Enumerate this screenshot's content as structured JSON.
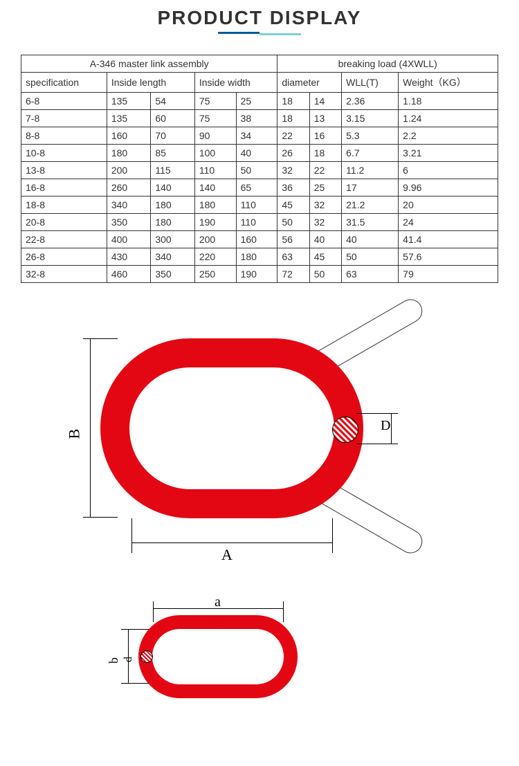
{
  "title": "PRODUCT DISPLAY",
  "title_color": "#333333",
  "underline_color1": "#0a5a9c",
  "underline_color2": "#7ecfd6",
  "table": {
    "header_left": "A-346 master link assembly",
    "header_right": "breaking load (4XWLL)",
    "columns": [
      "specification",
      "Inside length",
      "Inside width",
      "diameter",
      "WLL(T)",
      "Weight（KG）"
    ],
    "col_spans": [
      1,
      2,
      2,
      2,
      1,
      1
    ],
    "rows": [
      [
        "6-8",
        "135",
        "54",
        "75",
        "25",
        "18",
        "14",
        "2.36",
        "1.18"
      ],
      [
        "7-8",
        "135",
        "60",
        "75",
        "38",
        "18",
        "13",
        "3.15",
        "1.24"
      ],
      [
        "8-8",
        "160",
        "70",
        "90",
        "34",
        "22",
        "16",
        "5.3",
        "2.2"
      ],
      [
        "10-8",
        "180",
        "85",
        "100",
        "40",
        "26",
        "18",
        "6.7",
        "3.21"
      ],
      [
        "13-8",
        "200",
        "115",
        "110",
        "50",
        "32",
        "22",
        "11.2",
        "6"
      ],
      [
        "16-8",
        "260",
        "140",
        "140",
        "65",
        "36",
        "25",
        "17",
        "9.96"
      ],
      [
        "18-8",
        "340",
        "180",
        "180",
        "110",
        "45",
        "32",
        "21.2",
        "20"
      ],
      [
        "20-8",
        "350",
        "180",
        "190",
        "110",
        "50",
        "32",
        "31.5",
        "24"
      ],
      [
        "22-8",
        "400",
        "300",
        "200",
        "160",
        "56",
        "40",
        "40",
        "41.4"
      ],
      [
        "26-8",
        "430",
        "340",
        "220",
        "180",
        "63",
        "45",
        "50",
        "57.6"
      ],
      [
        "32-8",
        "460",
        "350",
        "250",
        "190",
        "72",
        "50",
        "63",
        "79"
      ]
    ],
    "border_color": "#333333",
    "font_size": 14,
    "text_color": "#333333"
  },
  "diagram": {
    "ring_color": "#e30613",
    "hatch_color": "#e30613",
    "line_color": "#000000",
    "big": {
      "label_A": "A",
      "label_B": "B",
      "label_D": "D",
      "ring_border_width": 42,
      "ring_width": 380,
      "ring_height": 260
    },
    "small": {
      "label_a": "a",
      "label_b": "b",
      "label_d": "d",
      "ring_border_width": 20,
      "ring_width": 230,
      "ring_height": 120
    }
  },
  "colors": {
    "background": "#ffffff",
    "red": "#e30613",
    "blue": "#0a5a9c",
    "teal": "#7ecfd6"
  }
}
